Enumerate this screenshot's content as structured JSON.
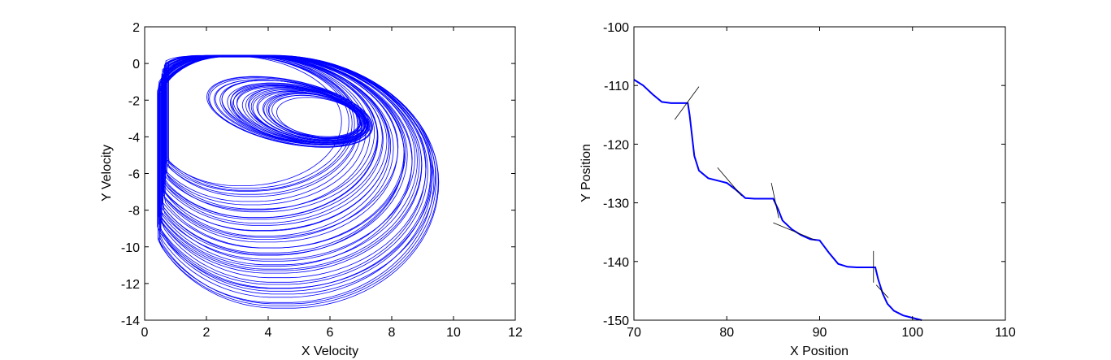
{
  "chart_data": [
    {
      "type": "line",
      "title": "",
      "xlabel": "X Velocity",
      "ylabel": "Y Velocity",
      "xlim": [
        0,
        12
      ],
      "ylim": [
        -14,
        2
      ],
      "xticks": [
        0,
        2,
        4,
        6,
        8,
        10,
        12
      ],
      "yticks": [
        2,
        0,
        -2,
        -4,
        -6,
        -8,
        -10,
        -12,
        -14
      ],
      "grid": false,
      "legend": "none",
      "series": [
        {
          "color": "#0000ff",
          "description_values": {
            "outer_loop_x_range": [
              0.3,
              10.3
            ],
            "outer_loop_y_range": [
              -13.2,
              0.5
            ],
            "inner_loop_x_range": [
              1.7,
              6.9
            ],
            "inner_loop_y_range": [
              -5.9,
              0.5
            ]
          }
        }
      ]
    },
    {
      "type": "line",
      "title": "",
      "xlabel": "X Position",
      "ylabel": "Y Position",
      "xlim": [
        70,
        110
      ],
      "ylim": [
        -150,
        -100
      ],
      "xticks": [
        70,
        80,
        90,
        100,
        110
      ],
      "yticks": [
        -100,
        -110,
        -120,
        -130,
        -140,
        -150
      ],
      "grid": false,
      "legend": "none",
      "series": [
        {
          "color": "#0000ff",
          "x": [
            70,
            71,
            72,
            73,
            74,
            75,
            75.8,
            76,
            76.5,
            77,
            78,
            79,
            80,
            81,
            82,
            83,
            84,
            85,
            85.5,
            86,
            87,
            88,
            89,
            90,
            91,
            92,
            93,
            94,
            95,
            96,
            96.3,
            96.8,
            97.3,
            98,
            99,
            100,
            101
          ],
          "y": [
            -109,
            -110,
            -111.5,
            -112.8,
            -113,
            -113,
            -113,
            -115,
            -122,
            -124.5,
            -125.8,
            -126.2,
            -126.6,
            -127.8,
            -129.2,
            -129.3,
            -129.3,
            -129.3,
            -131,
            -133,
            -134.5,
            -135.5,
            -136.2,
            -136.4,
            -138.5,
            -140.4,
            -140.9,
            -141,
            -141,
            -141,
            -143,
            -145.5,
            -147.2,
            -148.4,
            -149.2,
            -149.6,
            -150
          ]
        },
        {
          "name": "",
          "color": "#000000",
          "segments": [
            [
              [
                74.4,
                -115.8
              ],
              [
                77.0,
                -110.2
              ]
            ],
            [
              [
                79.0,
                -124.0
              ],
              [
                81.6,
                -128.8
              ]
            ],
            [
              [
                84.8,
                -126.6
              ],
              [
                85.6,
                -132.6
              ]
            ],
            [
              [
                85.0,
                -133.4
              ],
              [
                89.6,
                -136.4
              ]
            ],
            [
              [
                95.8,
                -138.2
              ],
              [
                95.8,
                -143.6
              ]
            ],
            [
              [
                96.1,
                -144.0
              ],
              [
                97.4,
                -146.2
              ]
            ]
          ]
        }
      ]
    }
  ]
}
